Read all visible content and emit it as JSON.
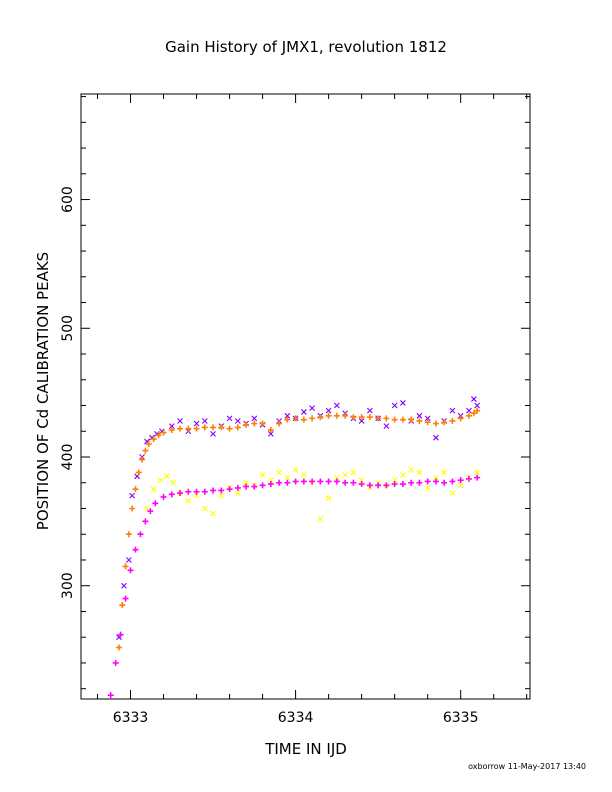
{
  "chart_data": {
    "type": "scatter",
    "title": "Gain History of JMX1, revolution 1812",
    "xlabel": "TIME IN IJD",
    "ylabel": "POSITION OF Cd CALIBRATION PEAKS",
    "xlim": [
      6332.7,
      6335.42
    ],
    "ylim": [
      212,
      682
    ],
    "xticks": [
      6333,
      6334,
      6335
    ],
    "xtick_labels": [
      "6333",
      "6334",
      "6335"
    ],
    "yticks": [
      300,
      400,
      500,
      600
    ],
    "ytick_labels": [
      "300",
      "400",
      "500",
      "600"
    ],
    "grid": false,
    "legend": "none",
    "footer": "oxborrow 11-May-2017 13:40",
    "series": [
      {
        "marker": "x",
        "color": "#7f00ff",
        "x": [
          6332.93,
          6332.96,
          6332.99,
          6333.01,
          6333.04,
          6333.07,
          6333.1,
          6333.13,
          6333.16,
          6333.19,
          6333.25,
          6333.3,
          6333.35,
          6333.4,
          6333.45,
          6333.5,
          6333.55,
          6333.6,
          6333.65,
          6333.7,
          6333.75,
          6333.8,
          6333.85,
          6333.9,
          6333.95,
          6334.0,
          6334.05,
          6334.1,
          6334.15,
          6334.2,
          6334.25,
          6334.3,
          6334.35,
          6334.4,
          6334.45,
          6334.5,
          6334.55,
          6334.6,
          6334.65,
          6334.7,
          6334.75,
          6334.8,
          6334.85,
          6334.9,
          6334.95,
          6335.0,
          6335.05,
          6335.08,
          6335.1
        ],
        "y": [
          260,
          300,
          320,
          370,
          385,
          400,
          412,
          415,
          418,
          420,
          424,
          428,
          420,
          426,
          428,
          418,
          424,
          430,
          428,
          426,
          430,
          425,
          418,
          428,
          432,
          430,
          435,
          438,
          432,
          436,
          440,
          434,
          430,
          428,
          436,
          430,
          424,
          440,
          442,
          428,
          432,
          430,
          415,
          428,
          436,
          432,
          436,
          445,
          440
        ]
      },
      {
        "marker": "+",
        "color": "#ff7f00",
        "x": [
          6332.93,
          6332.95,
          6332.97,
          6332.99,
          6333.01,
          6333.03,
          6333.05,
          6333.07,
          6333.09,
          6333.11,
          6333.14,
          6333.17,
          6333.2,
          6333.25,
          6333.3,
          6333.35,
          6333.4,
          6333.45,
          6333.5,
          6333.55,
          6333.6,
          6333.65,
          6333.7,
          6333.75,
          6333.8,
          6333.85,
          6333.9,
          6333.95,
          6334.0,
          6334.05,
          6334.1,
          6334.15,
          6334.2,
          6334.25,
          6334.3,
          6334.35,
          6334.4,
          6334.45,
          6334.5,
          6334.55,
          6334.6,
          6334.65,
          6334.7,
          6334.75,
          6334.8,
          6334.85,
          6334.9,
          6334.95,
          6335.0,
          6335.05,
          6335.08,
          6335.1
        ],
        "y": [
          252,
          285,
          315,
          340,
          360,
          375,
          388,
          398,
          405,
          410,
          414,
          417,
          419,
          421,
          422,
          422,
          422,
          423,
          423,
          423,
          422,
          423,
          425,
          426,
          426,
          421,
          426,
          429,
          430,
          429,
          430,
          431,
          432,
          432,
          432,
          431,
          431,
          431,
          430,
          430,
          429,
          429,
          429,
          428,
          427,
          426,
          427,
          428,
          430,
          432,
          434,
          436
        ]
      },
      {
        "marker": "x",
        "color": "#ffff00",
        "x": [
          6333.1,
          6333.14,
          6333.18,
          6333.22,
          6333.26,
          6333.3,
          6333.35,
          6333.4,
          6333.45,
          6333.5,
          6333.55,
          6333.6,
          6333.65,
          6333.7,
          6333.75,
          6333.8,
          6333.85,
          6333.9,
          6333.95,
          6334.0,
          6334.05,
          6334.1,
          6334.15,
          6334.2,
          6334.25,
          6334.3,
          6334.35,
          6334.4,
          6334.45,
          6334.5,
          6334.55,
          6334.6,
          6334.65,
          6334.7,
          6334.75,
          6334.8,
          6334.85,
          6334.9,
          6334.95,
          6335.0,
          6335.05,
          6335.1
        ],
        "y": [
          360,
          375,
          382,
          385,
          380,
          372,
          366,
          370,
          360,
          356,
          370,
          376,
          372,
          380,
          378,
          386,
          382,
          388,
          384,
          390,
          386,
          380,
          352,
          368,
          384,
          386,
          388,
          382,
          376,
          380,
          378,
          382,
          386,
          390,
          388,
          376,
          384,
          388,
          372,
          378,
          384,
          388
        ]
      },
      {
        "marker": "+",
        "color": "#ff00ff",
        "x": [
          6332.88,
          6332.91,
          6332.94,
          6332.97,
          6333.0,
          6333.03,
          6333.06,
          6333.09,
          6333.12,
          6333.15,
          6333.2,
          6333.25,
          6333.3,
          6333.35,
          6333.4,
          6333.45,
          6333.5,
          6333.55,
          6333.6,
          6333.65,
          6333.7,
          6333.75,
          6333.8,
          6333.85,
          6333.9,
          6333.95,
          6334.0,
          6334.05,
          6334.1,
          6334.15,
          6334.2,
          6334.25,
          6334.3,
          6334.35,
          6334.4,
          6334.45,
          6334.5,
          6334.55,
          6334.6,
          6334.65,
          6334.7,
          6334.75,
          6334.8,
          6334.85,
          6334.9,
          6334.95,
          6335.0,
          6335.05,
          6335.1
        ],
        "y": [
          215,
          240,
          262,
          290,
          312,
          328,
          340,
          350,
          358,
          364,
          369,
          371,
          372,
          373,
          373,
          373,
          374,
          374,
          375,
          376,
          377,
          377,
          378,
          379,
          380,
          380,
          381,
          381,
          381,
          381,
          381,
          381,
          380,
          380,
          379,
          378,
          378,
          378,
          379,
          379,
          380,
          380,
          381,
          381,
          380,
          381,
          382,
          383,
          384
        ]
      }
    ]
  }
}
